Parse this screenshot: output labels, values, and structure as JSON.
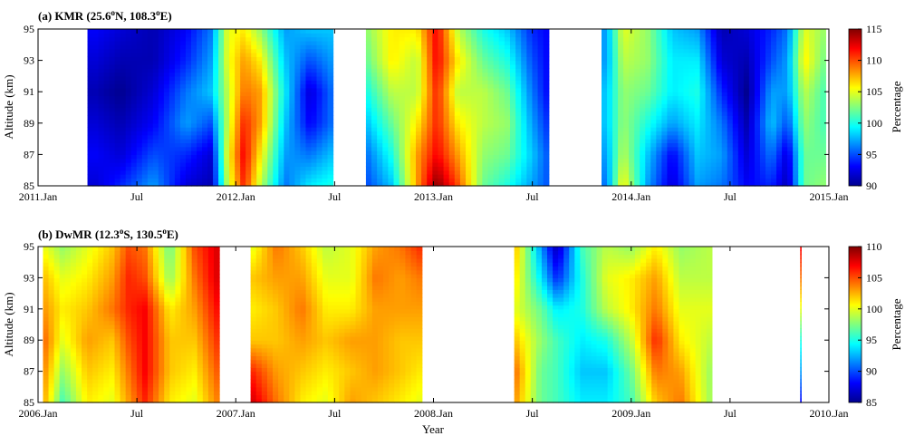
{
  "chart_data": [
    {
      "type": "heatmap",
      "title": "(a) KMR (25.6°N, 108.3°E)",
      "title_parts": {
        "prefix": "(a) KMR (25.6",
        "sup1": "o",
        "mid": "N, 108.3",
        "sup2": "o",
        "suffix": "E)"
      },
      "xlabel": "",
      "ylabel": "Altitude (km)",
      "colorbar_label": "Percentage",
      "x_ticks": [
        {
          "t": 0,
          "label": "2011.Jan"
        },
        {
          "t": 6,
          "label": "Jul"
        },
        {
          "t": 12,
          "label": "2012.Jan"
        },
        {
          "t": 18,
          "label": "Jul"
        },
        {
          "t": 24,
          "label": "2013.Jan"
        },
        {
          "t": 30,
          "label": "Jul"
        },
        {
          "t": 36,
          "label": "2014.Jan"
        },
        {
          "t": 42,
          "label": "Jul"
        },
        {
          "t": 48,
          "label": "2015.Jan"
        }
      ],
      "xlim": [
        0,
        48
      ],
      "y_ticks": [
        85,
        87,
        89,
        91,
        93,
        95
      ],
      "ylim": [
        85,
        95
      ],
      "clim": [
        90,
        115
      ],
      "colorbar_ticks": [
        90,
        95,
        100,
        105,
        110,
        115
      ],
      "data_segments": [
        [
          3,
          17.9
        ],
        [
          19.9,
          31
        ],
        [
          34.2,
          47.8
        ]
      ],
      "columns": [
        {
          "t": 3.5,
          "v": [
            92,
            93,
            92,
            91,
            92,
            93
          ]
        },
        {
          "t": 5,
          "v": [
            94,
            92,
            91,
            90,
            91,
            92
          ]
        },
        {
          "t": 7,
          "v": [
            97,
            95,
            93,
            92,
            91,
            91
          ]
        },
        {
          "t": 9,
          "v": [
            92,
            94,
            97,
            96,
            94,
            93
          ]
        },
        {
          "t": 10.5,
          "v": [
            91,
            92,
            95,
            98,
            97,
            96
          ]
        },
        {
          "t": 11.5,
          "v": [
            104,
            105,
            104,
            104,
            105,
            105
          ]
        },
        {
          "t": 12.5,
          "v": [
            111,
            112,
            111,
            109,
            108,
            106
          ]
        },
        {
          "t": 13.5,
          "v": [
            104,
            106,
            108,
            108,
            106,
            103
          ]
        },
        {
          "t": 15,
          "v": [
            96,
            97,
            98,
            99,
            98,
            97
          ]
        },
        {
          "t": 16.5,
          "v": [
            99,
            96,
            93,
            92,
            95,
            98
          ]
        },
        {
          "t": 17.9,
          "v": [
            100,
            98,
            96,
            96,
            97,
            98
          ]
        },
        {
          "t": 20,
          "v": [
            95,
            96,
            98,
            100,
            102,
            103
          ]
        },
        {
          "t": 21.5,
          "v": [
            98,
            100,
            102,
            104,
            106,
            106
          ]
        },
        {
          "t": 23,
          "v": [
            108,
            108,
            106,
            104,
            104,
            106
          ]
        },
        {
          "t": 24.2,
          "v": [
            115,
            112,
            111,
            111,
            112,
            112
          ]
        },
        {
          "t": 25.5,
          "v": [
            110,
            108,
            106,
            104,
            106,
            104
          ]
        },
        {
          "t": 27,
          "v": [
            102,
            103,
            104,
            104,
            102,
            100
          ]
        },
        {
          "t": 28.5,
          "v": [
            100,
            102,
            103,
            102,
            100,
            98
          ]
        },
        {
          "t": 30,
          "v": [
            97,
            98,
            97,
            96,
            95,
            94
          ]
        },
        {
          "t": 31,
          "v": [
            95,
            95,
            94,
            93,
            93,
            93
          ]
        },
        {
          "t": 34.5,
          "v": [
            96,
            97,
            98,
            98,
            97,
            97
          ]
        },
        {
          "t": 35.5,
          "v": [
            106,
            104,
            103,
            103,
            104,
            105
          ]
        },
        {
          "t": 37,
          "v": [
            97,
            98,
            100,
            102,
            103,
            103
          ]
        },
        {
          "t": 38.5,
          "v": [
            92,
            93,
            97,
            99,
            99,
            98
          ]
        },
        {
          "t": 40,
          "v": [
            97,
            98,
            99,
            100,
            99,
            97
          ]
        },
        {
          "t": 41.5,
          "v": [
            96,
            97,
            96,
            94,
            92,
            91
          ]
        },
        {
          "t": 43,
          "v": [
            93,
            92,
            91,
            90,
            91,
            92
          ]
        },
        {
          "t": 44.5,
          "v": [
            94,
            96,
            98,
            97,
            95,
            94
          ]
        },
        {
          "t": 45.5,
          "v": [
            91,
            92,
            95,
            97,
            97,
            96
          ]
        },
        {
          "t": 46.5,
          "v": [
            102,
            102,
            103,
            104,
            106,
            105
          ]
        },
        {
          "t": 47.8,
          "v": [
            103,
            102,
            101,
            101,
            102,
            103
          ]
        }
      ]
    },
    {
      "type": "heatmap",
      "title": "(b) DwMR (12.3°S, 130.5°E)",
      "title_parts": {
        "prefix": "(b) DwMR (12.3",
        "sup1": "o",
        "mid": "S, 130.5",
        "sup2": "o",
        "suffix": "E)"
      },
      "xlabel": "Year",
      "ylabel": "Altitude (km)",
      "colorbar_label": "Percentage",
      "x_ticks": [
        {
          "t": 0,
          "label": "2006.Jan"
        },
        {
          "t": 6,
          "label": "Jul"
        },
        {
          "t": 12,
          "label": "2007.Jan"
        },
        {
          "t": 18,
          "label": "Jul"
        },
        {
          "t": 24,
          "label": "2008.Jan"
        },
        {
          "t": 30,
          "label": "Jul"
        },
        {
          "t": 36,
          "label": "2009.Jan"
        },
        {
          "t": 42,
          "label": "Jul"
        },
        {
          "t": 48,
          "label": "2010.Jan"
        }
      ],
      "xlim": [
        0,
        48
      ],
      "y_ticks": [
        85,
        87,
        89,
        91,
        93,
        95
      ],
      "ylim": [
        85,
        95
      ],
      "clim": [
        85,
        110
      ],
      "colorbar_ticks": [
        85,
        90,
        95,
        100,
        105,
        110
      ],
      "data_segments": [
        [
          0.3,
          11
        ],
        [
          12.9,
          23.3
        ],
        [
          28.9,
          40.9
        ]
      ],
      "columns": [
        {
          "t": 0.5,
          "v": [
            102,
            103,
            104,
            103,
            102,
            100
          ]
        },
        {
          "t": 1.5,
          "v": [
            96,
            98,
            100,
            101,
            100,
            98
          ]
        },
        {
          "t": 3,
          "v": [
            101,
            102,
            103,
            102,
            101,
            100
          ]
        },
        {
          "t": 4.5,
          "v": [
            100,
            101,
            102,
            104,
            103,
            102
          ]
        },
        {
          "t": 5.5,
          "v": [
            103,
            104,
            105,
            106,
            106,
            105
          ]
        },
        {
          "t": 6.5,
          "v": [
            106,
            107,
            107,
            107,
            105,
            104
          ]
        },
        {
          "t": 8,
          "v": [
            101,
            102,
            102,
            101,
            98,
            97
          ]
        },
        {
          "t": 9.5,
          "v": [
            100,
            101,
            102,
            103,
            104,
            105
          ]
        },
        {
          "t": 11,
          "v": [
            104,
            105,
            106,
            107,
            108,
            108
          ]
        },
        {
          "t": 13,
          "v": [
            108,
            106,
            102,
            101,
            102,
            100
          ]
        },
        {
          "t": 14.5,
          "v": [
            104,
            103,
            102,
            102,
            103,
            104
          ]
        },
        {
          "t": 16,
          "v": [
            101,
            102,
            103,
            104,
            103,
            102
          ]
        },
        {
          "t": 17.5,
          "v": [
            100,
            101,
            102,
            101,
            100,
            99
          ]
        },
        {
          "t": 19,
          "v": [
            103,
            102,
            103,
            101,
            100,
            100
          ]
        },
        {
          "t": 20.5,
          "v": [
            102,
            103,
            103,
            103,
            104,
            103
          ]
        },
        {
          "t": 22,
          "v": [
            101,
            102,
            102,
            103,
            103,
            104
          ]
        },
        {
          "t": 23.3,
          "v": [
            100,
            101,
            102,
            103,
            104,
            106
          ]
        },
        {
          "t": 29,
          "v": [
            103,
            104,
            102,
            100,
            101,
            102
          ]
        },
        {
          "t": 30.5,
          "v": [
            97,
            97,
            98,
            97,
            94,
            92
          ]
        },
        {
          "t": 31.5,
          "v": [
            96,
            96,
            96,
            94,
            89,
            86
          ]
        },
        {
          "t": 33,
          "v": [
            94,
            93,
            94,
            95,
            95,
            96
          ]
        },
        {
          "t": 34.5,
          "v": [
            94,
            93,
            95,
            99,
            100,
            99
          ]
        },
        {
          "t": 36,
          "v": [
            96,
            97,
            99,
            101,
            101,
            98
          ]
        },
        {
          "t": 37.5,
          "v": [
            102,
            104,
            106,
            104,
            103,
            101
          ]
        },
        {
          "t": 39,
          "v": [
            104,
            103,
            101,
            100,
            99,
            98
          ]
        },
        {
          "t": 40.9,
          "v": [
            98,
            98,
            99,
            100,
            99,
            99
          ]
        }
      ],
      "thin_line": {
        "t": 46.3,
        "v": [
          88,
          92,
          95,
          100,
          104,
          107
        ]
      }
    }
  ]
}
